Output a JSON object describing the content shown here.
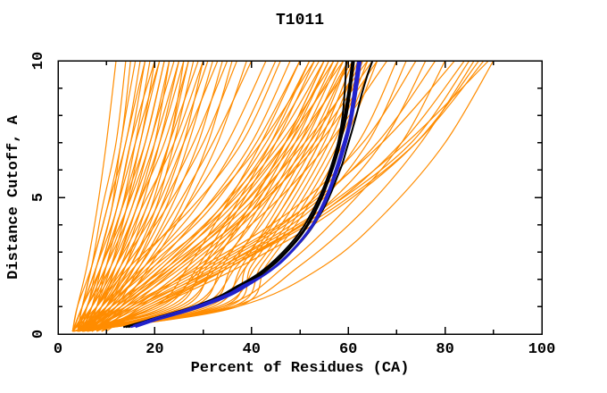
{
  "chart_data": {
    "type": "line",
    "title": "T1011",
    "xlabel": "Percent of Residues (CA)",
    "ylabel": "Distance Cutoff, A",
    "xlim": [
      0,
      100
    ],
    "ylim": [
      0,
      10
    ],
    "x_major_ticks": [
      0,
      20,
      40,
      60,
      80,
      100
    ],
    "x_minor_ticks": [
      10,
      30,
      50,
      70,
      90
    ],
    "y_major_ticks": [
      0,
      5,
      10
    ],
    "y_minor_ticks": [
      1,
      2,
      3,
      4,
      6,
      7,
      8,
      9
    ],
    "grid": false,
    "legend": "none",
    "colors": {
      "prediction_curves": "#ff8c00",
      "highlight_curves": "#2222cc",
      "reference_curves": "#000000",
      "frame": "#000000",
      "background": "#ffffff"
    },
    "orange_y_stations": [
      0.1,
      1,
      2.5,
      4.5,
      7,
      10
    ],
    "orange_curves_x": [
      [
        3,
        4,
        6,
        8,
        10,
        12
      ],
      [
        4,
        5,
        7,
        9,
        12,
        14
      ],
      [
        3,
        5,
        8,
        11,
        13,
        16
      ],
      [
        5,
        7,
        9,
        12,
        15,
        18
      ],
      [
        4,
        6,
        9,
        13,
        16,
        19
      ],
      [
        3,
        4,
        7,
        10,
        14,
        17
      ],
      [
        6,
        8,
        11,
        14,
        17,
        21
      ],
      [
        4,
        7,
        10,
        14,
        18,
        22
      ],
      [
        5,
        8,
        12,
        16,
        20,
        23
      ],
      [
        3,
        6,
        10,
        15,
        19,
        24
      ],
      [
        7,
        9,
        13,
        17,
        21,
        25
      ],
      [
        4,
        6,
        11,
        16,
        21,
        26
      ],
      [
        5,
        9,
        14,
        19,
        23,
        27
      ],
      [
        6,
        10,
        15,
        20,
        24,
        28
      ],
      [
        3,
        7,
        12,
        18,
        23,
        29
      ],
      [
        8,
        11,
        16,
        21,
        26,
        30
      ],
      [
        4,
        8,
        13,
        19,
        25,
        31
      ],
      [
        5,
        10,
        16,
        22,
        27,
        32
      ],
      [
        7,
        12,
        17,
        23,
        29,
        34
      ],
      [
        4,
        9,
        15,
        21,
        28,
        35
      ],
      [
        6,
        11,
        18,
        25,
        31,
        36
      ],
      [
        5,
        8,
        14,
        22,
        30,
        37
      ],
      [
        8,
        13,
        19,
        26,
        33,
        39
      ],
      [
        6,
        10,
        17,
        24,
        32,
        40
      ],
      [
        4,
        9,
        16,
        26,
        35,
        43
      ],
      [
        5,
        11,
        18,
        28,
        37,
        45
      ],
      [
        3,
        8,
        15,
        27,
        38,
        46
      ],
      [
        6,
        12,
        20,
        30,
        40,
        48
      ],
      [
        4,
        10,
        19,
        31,
        41,
        50
      ],
      [
        7,
        13,
        22,
        33,
        43,
        52
      ],
      [
        5,
        9,
        18,
        30,
        42,
        53
      ],
      [
        8,
        14,
        23,
        34,
        44,
        54
      ],
      [
        4,
        11,
        21,
        33,
        45,
        55
      ],
      [
        6,
        13,
        24,
        36,
        47,
        56
      ],
      [
        5,
        10,
        20,
        34,
        46,
        57
      ],
      [
        9,
        15,
        25,
        37,
        48,
        58
      ],
      [
        4,
        12,
        22,
        35,
        47,
        59
      ],
      [
        7,
        14,
        26,
        39,
        50,
        60
      ],
      [
        5,
        11,
        23,
        37,
        49,
        61
      ],
      [
        8,
        16,
        27,
        40,
        52,
        63
      ],
      [
        6,
        12,
        24,
        38,
        51,
        64
      ],
      [
        10,
        17,
        28,
        41,
        53,
        65
      ],
      [
        5,
        13,
        25,
        40,
        54,
        66
      ],
      [
        7,
        15,
        29,
        43,
        56,
        68
      ],
      [
        3,
        20,
        27,
        34,
        42,
        50
      ],
      [
        4,
        22,
        29,
        36,
        44,
        52
      ],
      [
        3,
        24,
        30,
        37,
        45,
        53
      ],
      [
        5,
        26,
        32,
        39,
        47,
        55
      ],
      [
        4,
        28,
        34,
        41,
        49,
        57
      ],
      [
        3,
        30,
        36,
        43,
        51,
        59
      ],
      [
        6,
        32,
        38,
        45,
        53,
        60
      ],
      [
        4,
        34,
        39,
        46,
        54,
        61
      ],
      [
        3,
        35,
        40,
        48,
        56,
        63
      ],
      [
        5,
        36,
        42,
        50,
        58,
        65
      ],
      [
        4,
        37,
        43,
        51,
        59,
        66
      ],
      [
        3,
        33,
        41,
        49,
        57,
        64
      ],
      [
        6,
        31,
        39,
        47,
        55,
        62
      ],
      [
        4,
        29,
        37,
        46,
        54,
        61
      ],
      [
        3,
        27,
        35,
        44,
        52,
        60
      ],
      [
        5,
        25,
        33,
        42,
        50,
        58
      ],
      [
        4,
        23,
        31,
        40,
        48,
        56
      ],
      [
        3,
        21,
        30,
        39,
        47,
        55
      ],
      [
        6,
        16,
        32,
        50,
        62,
        70
      ],
      [
        8,
        18,
        34,
        52,
        64,
        72
      ],
      [
        5,
        14,
        30,
        48,
        63,
        74
      ],
      [
        9,
        20,
        36,
        54,
        67,
        76
      ],
      [
        7,
        17,
        33,
        51,
        66,
        78
      ],
      [
        5,
        34,
        47,
        59,
        71,
        80
      ],
      [
        6,
        15,
        31,
        50,
        67,
        82
      ],
      [
        8,
        19,
        35,
        55,
        71,
        84
      ],
      [
        4,
        36,
        50,
        63,
        75,
        86
      ],
      [
        9,
        18,
        36,
        56,
        74,
        88
      ],
      [
        6,
        16,
        34,
        54,
        72,
        89
      ],
      [
        5,
        37,
        55,
        68,
        80,
        90
      ],
      [
        8,
        20,
        38,
        57,
        74,
        87
      ],
      [
        7,
        19,
        36,
        55,
        73,
        85
      ],
      [
        3,
        5,
        8,
        12,
        15,
        20
      ],
      [
        4,
        6,
        9,
        14,
        19,
        23
      ],
      [
        5,
        7,
        11,
        15,
        20,
        25
      ],
      [
        3,
        5,
        9,
        13,
        18,
        22
      ],
      [
        6,
        9,
        12,
        16,
        22,
        27
      ],
      [
        4,
        7,
        12,
        17,
        24,
        30
      ],
      [
        5,
        8,
        13,
        20,
        26,
        33
      ],
      [
        7,
        10,
        14,
        18,
        23,
        26
      ],
      [
        3,
        6,
        8,
        11,
        14,
        18
      ],
      [
        4,
        5,
        7,
        10,
        13,
        15
      ],
      [
        6,
        8,
        10,
        13,
        17,
        20
      ],
      [
        5,
        6,
        9,
        12,
        16,
        21
      ]
    ],
    "black_curves": [
      [
        [
          13.5,
          0.25
        ],
        [
          18.5,
          0.5
        ],
        [
          24.5,
          0.8
        ],
        [
          29.5,
          1.1
        ],
        [
          33.5,
          1.4
        ],
        [
          36.5,
          1.7
        ],
        [
          40.5,
          2.1
        ],
        [
          43.5,
          2.5
        ],
        [
          46.5,
          3.0
        ],
        [
          49,
          3.5
        ],
        [
          51,
          4.0
        ],
        [
          52.6,
          4.5
        ],
        [
          54,
          5.0
        ],
        [
          55.2,
          5.5
        ],
        [
          56.2,
          6.0
        ],
        [
          57.1,
          6.5
        ],
        [
          57.9,
          7.0
        ],
        [
          58.6,
          7.5
        ],
        [
          59.2,
          8.0
        ],
        [
          60.1,
          9.0
        ],
        [
          60.8,
          10
        ]
      ],
      [
        [
          16.5,
          0.3
        ],
        [
          21.5,
          0.6
        ],
        [
          27.5,
          0.9
        ],
        [
          32.5,
          1.2
        ],
        [
          36.5,
          1.5
        ],
        [
          39.5,
          1.85
        ],
        [
          43.5,
          2.3
        ],
        [
          46.5,
          2.7
        ],
        [
          49.3,
          3.2
        ],
        [
          51.7,
          3.7
        ],
        [
          53.6,
          4.2
        ],
        [
          55.2,
          4.7
        ],
        [
          56.5,
          5.2
        ],
        [
          57.6,
          5.7
        ],
        [
          58.7,
          6.2
        ],
        [
          59.7,
          6.8
        ],
        [
          60.7,
          7.4
        ],
        [
          61.8,
          8.1
        ],
        [
          62.8,
          8.8
        ],
        [
          64,
          9.5
        ],
        [
          65,
          10
        ]
      ],
      [
        [
          14.5,
          0.25
        ],
        [
          19.5,
          0.55
        ],
        [
          25.5,
          0.85
        ],
        [
          30.5,
          1.15
        ],
        [
          34.5,
          1.45
        ],
        [
          37.5,
          1.75
        ],
        [
          41.5,
          2.15
        ],
        [
          44.5,
          2.55
        ],
        [
          47.4,
          3.05
        ],
        [
          49.9,
          3.55
        ],
        [
          51.9,
          4.05
        ],
        [
          53.4,
          4.55
        ],
        [
          54.7,
          5.05
        ],
        [
          55.8,
          5.55
        ],
        [
          56.8,
          6.05
        ],
        [
          57.7,
          6.55
        ],
        [
          58.4,
          7.05
        ],
        [
          59.1,
          7.55
        ],
        [
          59.7,
          8.05
        ],
        [
          60.5,
          9.0
        ],
        [
          61.2,
          10
        ]
      ],
      [
        [
          15.2,
          0.3
        ],
        [
          20.2,
          0.6
        ],
        [
          26.2,
          0.9
        ],
        [
          31.2,
          1.2
        ],
        [
          35.2,
          1.5
        ],
        [
          38.2,
          1.8
        ],
        [
          42,
          2.2
        ],
        [
          45,
          2.6
        ],
        [
          47.8,
          3.1
        ],
        [
          50.2,
          3.6
        ],
        [
          52,
          4.1
        ],
        [
          53.5,
          4.6
        ],
        [
          54.8,
          5.1
        ],
        [
          55.8,
          5.6
        ],
        [
          56.7,
          6.1
        ],
        [
          57.4,
          6.6
        ],
        [
          58,
          7.1
        ],
        [
          58.5,
          7.6
        ],
        [
          58.9,
          8.1
        ],
        [
          59.3,
          9.0
        ],
        [
          59.6,
          10
        ]
      ],
      [
        [
          14,
          0.25
        ],
        [
          19,
          0.5
        ],
        [
          25,
          0.8
        ],
        [
          30,
          1.1
        ],
        [
          34,
          1.4
        ],
        [
          37,
          1.7
        ],
        [
          41,
          2.1
        ],
        [
          44,
          2.5
        ],
        [
          47,
          3.0
        ],
        [
          49.5,
          3.5
        ],
        [
          51.5,
          4.0
        ],
        [
          53,
          4.5
        ],
        [
          54.4,
          5.0
        ],
        [
          55.5,
          5.5
        ],
        [
          56.5,
          6.0
        ],
        [
          57.4,
          6.5
        ],
        [
          58.2,
          7.0
        ],
        [
          58.9,
          7.5
        ],
        [
          59.5,
          8.0
        ],
        [
          60.3,
          9.0
        ],
        [
          61,
          10
        ]
      ]
    ],
    "blue_curves": [
      [
        [
          15,
          0.25
        ],
        [
          20,
          0.5
        ],
        [
          26,
          0.8
        ],
        [
          31,
          1.1
        ],
        [
          35,
          1.4
        ],
        [
          38,
          1.7
        ],
        [
          42,
          2.1
        ],
        [
          45,
          2.5
        ],
        [
          48,
          3.0
        ],
        [
          50.5,
          3.5
        ],
        [
          52.5,
          4.0
        ],
        [
          54,
          4.5
        ],
        [
          55.3,
          5.0
        ],
        [
          56.4,
          5.5
        ],
        [
          57.3,
          6.0
        ],
        [
          58.2,
          6.5
        ],
        [
          59,
          7.0
        ],
        [
          59.8,
          7.5
        ],
        [
          60.4,
          8.0
        ],
        [
          61.2,
          9.0
        ],
        [
          62,
          10
        ]
      ],
      [
        [
          16,
          0.25
        ],
        [
          21,
          0.55
        ],
        [
          27,
          0.85
        ],
        [
          32,
          1.15
        ],
        [
          36,
          1.45
        ],
        [
          39,
          1.75
        ],
        [
          43,
          2.2
        ],
        [
          46,
          2.6
        ],
        [
          48.8,
          3.1
        ],
        [
          51.2,
          3.6
        ],
        [
          53.2,
          4.1
        ],
        [
          54.7,
          4.6
        ],
        [
          56,
          5.1
        ],
        [
          57,
          5.6
        ],
        [
          58,
          6.1
        ],
        [
          58.9,
          6.6
        ],
        [
          59.7,
          7.1
        ],
        [
          60.4,
          7.6
        ],
        [
          61,
          8.1
        ],
        [
          61.8,
          9.0
        ],
        [
          62.6,
          10
        ]
      ],
      [
        [
          15.5,
          0.3
        ],
        [
          20.5,
          0.6
        ],
        [
          26.5,
          0.9
        ],
        [
          31.5,
          1.2
        ],
        [
          35.5,
          1.5
        ],
        [
          38.5,
          1.8
        ],
        [
          42.5,
          2.15
        ],
        [
          45.5,
          2.55
        ],
        [
          48.4,
          3.05
        ],
        [
          50.8,
          3.55
        ],
        [
          52.8,
          4.05
        ],
        [
          54.3,
          4.55
        ],
        [
          55.6,
          5.05
        ],
        [
          56.7,
          5.55
        ],
        [
          57.6,
          6.05
        ],
        [
          58.5,
          6.55
        ],
        [
          59.3,
          7.05
        ],
        [
          60.1,
          7.55
        ],
        [
          60.7,
          8.05
        ],
        [
          61.5,
          9.0
        ],
        [
          62.3,
          10
        ]
      ]
    ]
  }
}
